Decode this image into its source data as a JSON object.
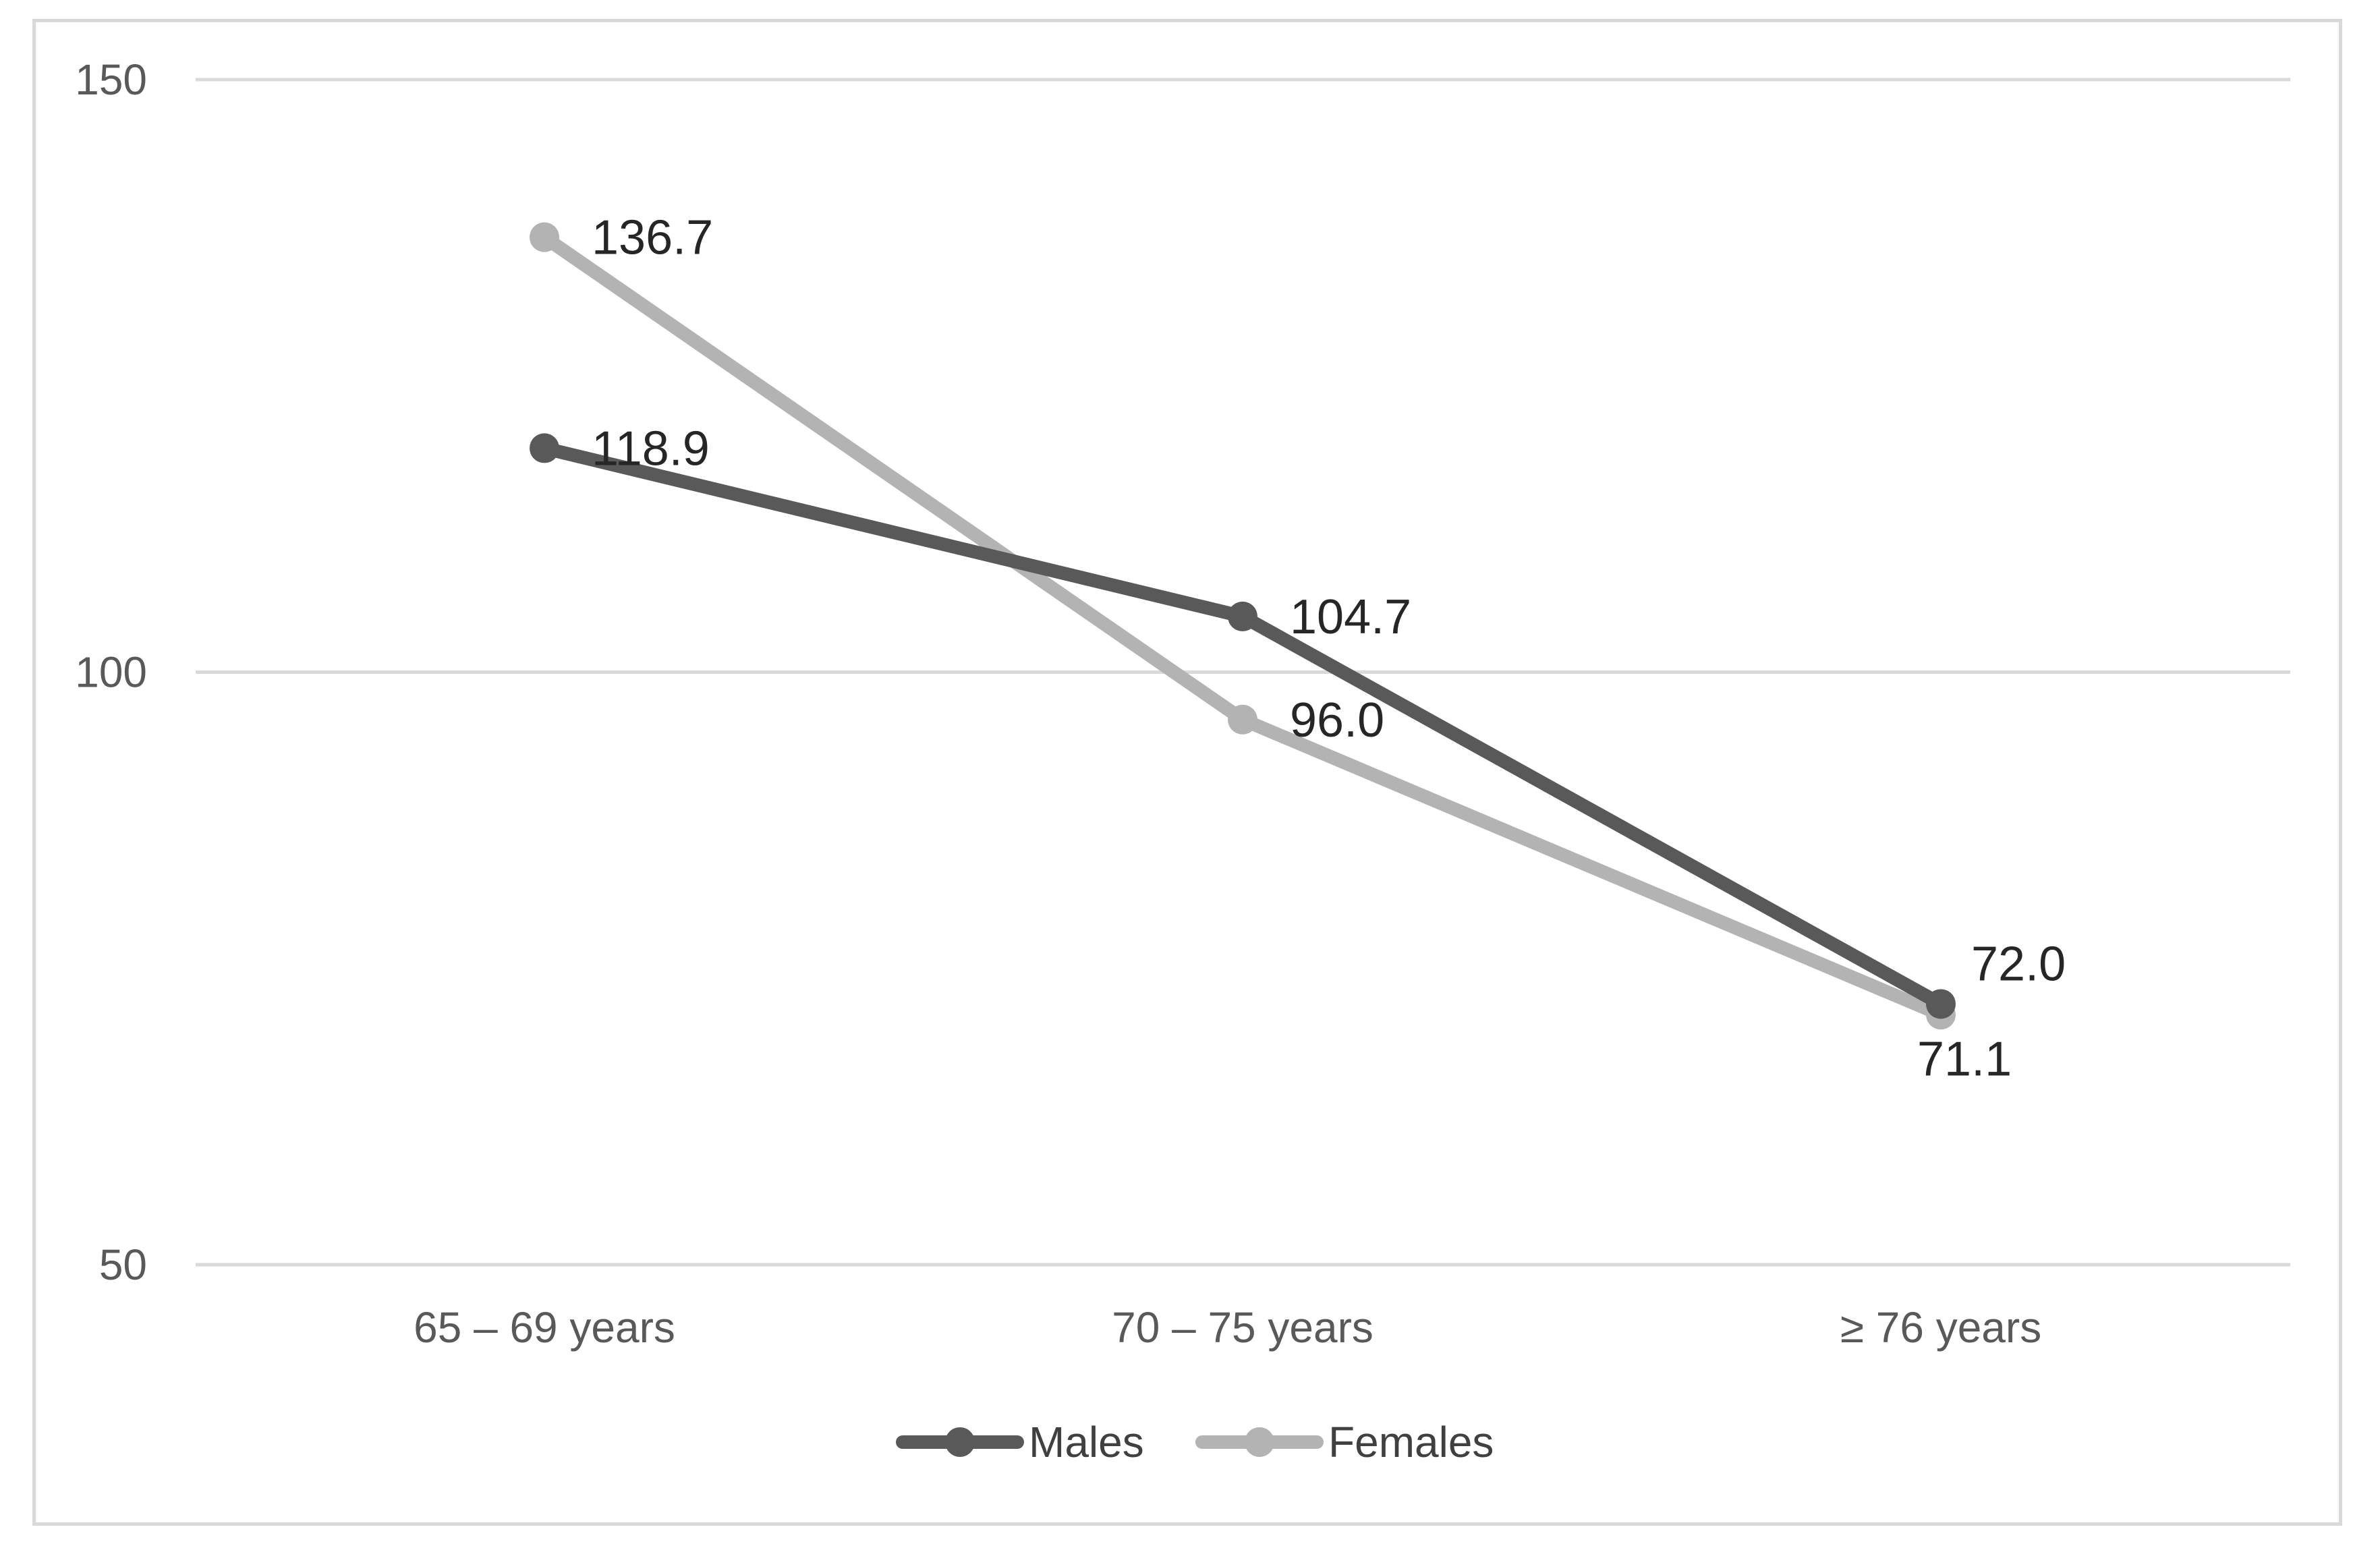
{
  "chart_data": {
    "type": "line",
    "title": "",
    "xlabel": "",
    "ylabel": "",
    "categories": [
      "65 – 69 years",
      "70 – 75 years",
      "≥ 76 years"
    ],
    "series": [
      {
        "name": "Males",
        "values": [
          118.9,
          104.7,
          72.0
        ],
        "labels": [
          "118.9",
          "104.7",
          "72.0"
        ],
        "color": "#595959"
      },
      {
        "name": "Females",
        "values": [
          136.7,
          96.0,
          71.1
        ],
        "labels": [
          "136.7",
          "96.0",
          "71.1"
        ],
        "color": "#b3b3b3"
      }
    ],
    "ylim": [
      50,
      150
    ],
    "yticks": [
      50,
      100,
      150
    ],
    "ytick_labels": [
      "50",
      "100",
      "150"
    ],
    "grid": true,
    "legend_position": "bottom"
  }
}
